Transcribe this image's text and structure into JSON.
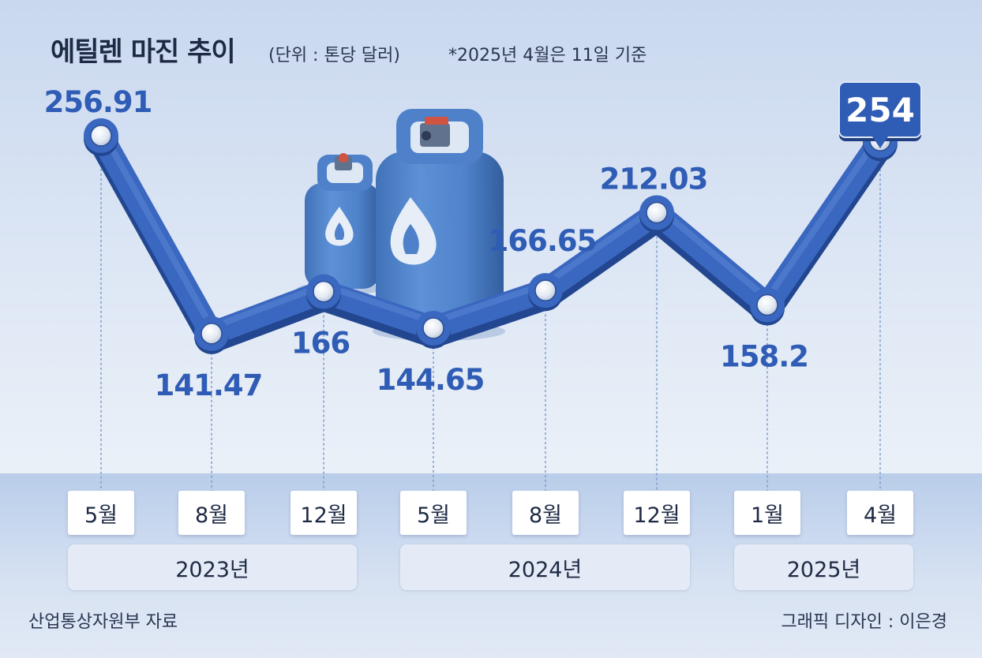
{
  "title": "에틸렌 마진 추이",
  "unit": "(단위 : 톤당 달러)",
  "note": "*2025년 4월은 11일 기준",
  "source": "산업통상자원부 자료",
  "credit": "그래픽 디자인 : 이은경",
  "chart_data": {
    "type": "line",
    "title": "에틸렌 마진 추이",
    "unit": "(단위 : 톤당 달러)",
    "categories": [
      "5월",
      "8월",
      "12월",
      "5월",
      "8월",
      "12월",
      "1월",
      "4월"
    ],
    "years": [
      {
        "label": "2023년",
        "span": [
          0,
          2
        ]
      },
      {
        "label": "2024년",
        "span": [
          3,
          5
        ]
      },
      {
        "label": "2025년",
        "span": [
          6,
          7
        ]
      }
    ],
    "values": [
      256.91,
      141.47,
      166,
      144.65,
      166.65,
      212.03,
      158.2,
      254
    ],
    "value_labels": [
      "256.91",
      "141.47",
      "166",
      "144.65",
      "166.65",
      "212.03",
      "158.2",
      "254"
    ],
    "highlight_index": 7,
    "ylim": [
      60,
      290
    ],
    "grid": false,
    "colors": {
      "line": "#3a67c0",
      "line_dark": "#22468f",
      "label": "#2f5cb5",
      "callout": "#2f5cb5"
    }
  }
}
